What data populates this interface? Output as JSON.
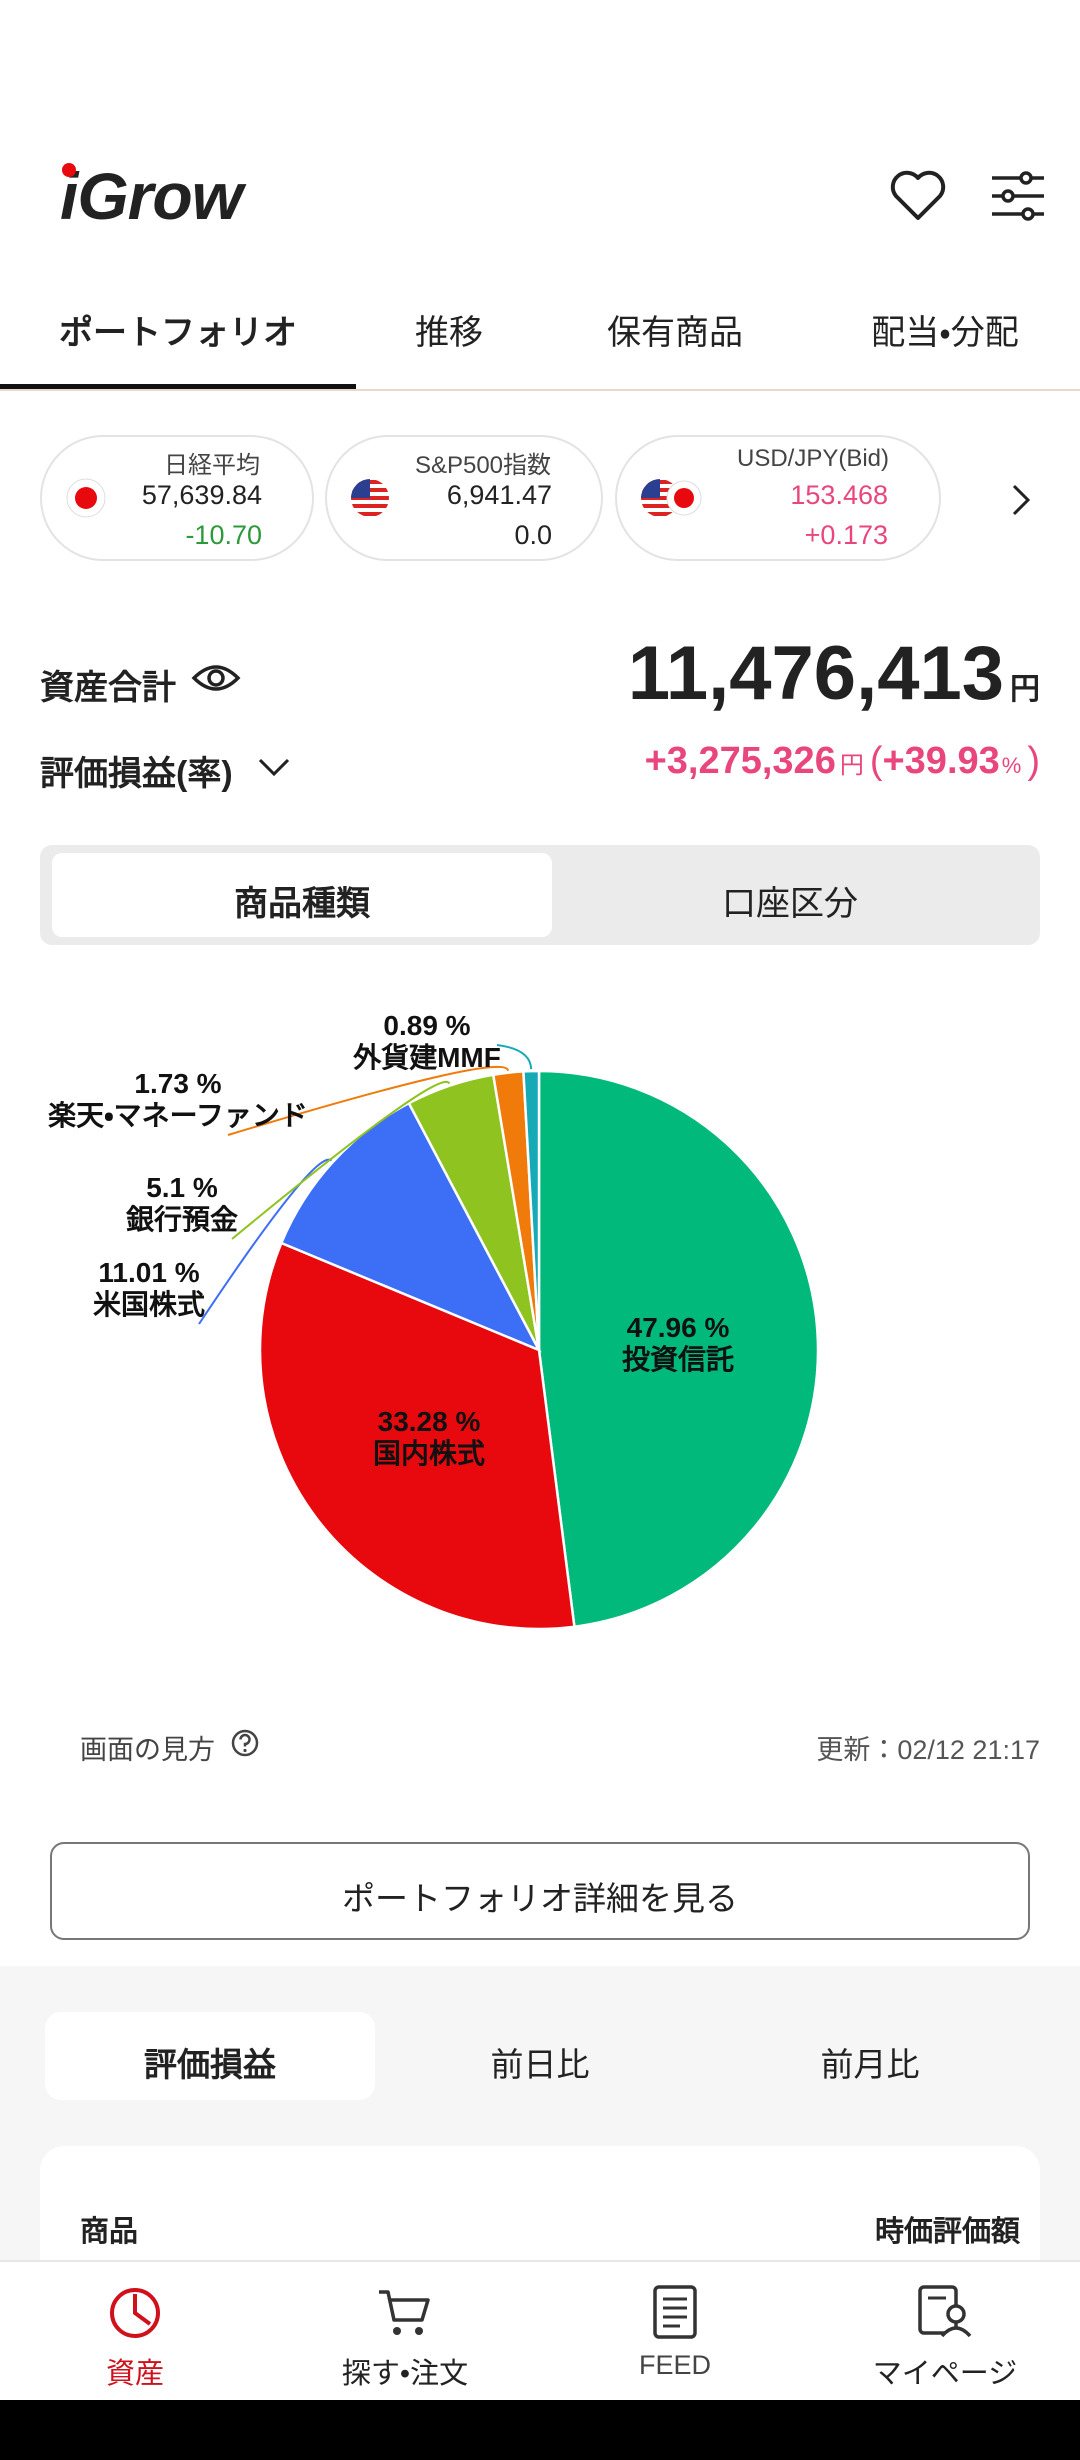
{
  "header": {
    "logo": "iGrow"
  },
  "tabs": [
    "ポートフォリオ",
    "推移",
    "保有商品",
    "配当・分配"
  ],
  "markets": [
    {
      "name": "日経平均",
      "price": "57,639.84",
      "change": "-10.70"
    },
    {
      "name": "S&P500指数",
      "price": "6,941.47",
      "change": "0.0"
    },
    {
      "name": "USD/JPY(Bid)",
      "price": "153.468",
      "change": "+0.173"
    }
  ],
  "summary": {
    "total_label": "資産合計",
    "total_value": "11,476,413",
    "total_unit": "円",
    "pl_label": "評価損益(率)",
    "pl_value": "+3,275,326",
    "pl_unit": "円",
    "paren_open": "(",
    "pl_rate": "+39.93",
    "pl_rate_unit": "%",
    "paren_close": ")"
  },
  "segments": [
    "商品種類",
    "口座区分"
  ],
  "chart_data": {
    "type": "pie",
    "categories": [
      "投資信託",
      "国内株式",
      "米国株式",
      "銀行預金",
      "楽天・マネーファンド",
      "外貨建MMF"
    ],
    "values": [
      47.96,
      33.28,
      11.01,
      5.1,
      1.73,
      0.89
    ],
    "value_labels": [
      "47.96 %",
      "33.28 %",
      "11.01 %",
      "5.1 %",
      "1.73 %",
      "0.89 %"
    ],
    "colors": [
      "#00b97a",
      "#e8090f",
      "#3c6ff6",
      "#8fc31f",
      "#f07a0a",
      "#16a9b6"
    ]
  },
  "help_label": "画面の見方",
  "updated": "更新：02/12 21:17",
  "detail_button": "ポートフォリオ詳細を見る",
  "compare_tabs": [
    "評価損益",
    "前日比",
    "前月比"
  ],
  "table_header": [
    "商品",
    "時価評価額"
  ],
  "bottom_nav": [
    "資産",
    "探す•注文",
    "FEED",
    "マイページ"
  ]
}
